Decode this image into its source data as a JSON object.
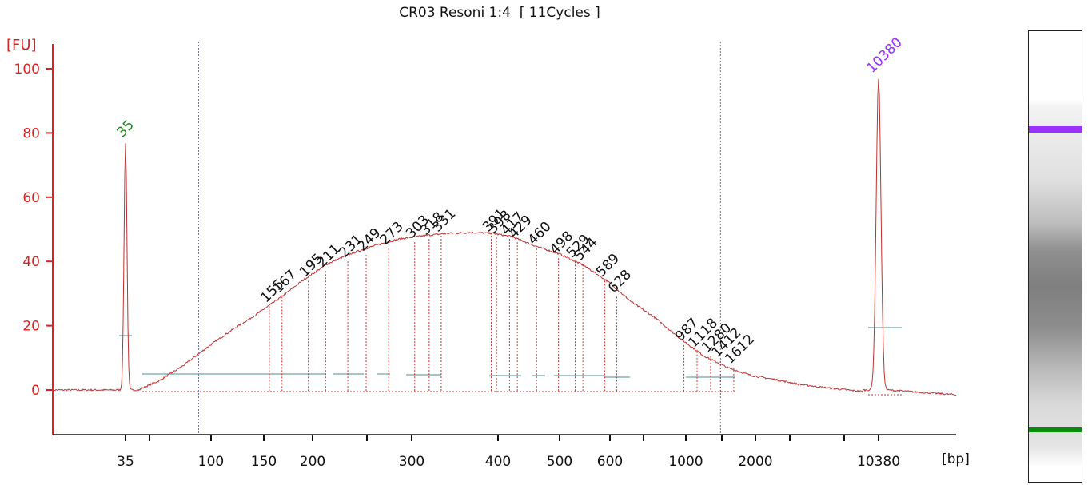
{
  "chart_data": {
    "type": "line",
    "title": "CR03 Resoni 1:4  [ 11Cycles ]",
    "ylabel": "[FU]",
    "xlabel": "[bp]",
    "ylim": [
      -13,
      105
    ],
    "y_ticks": [
      0,
      20,
      40,
      60,
      80,
      100
    ],
    "x_tick_labels": [
      "35",
      "100",
      "150",
      "200",
      "300",
      "400",
      "500",
      "600",
      "1000",
      "2000",
      "10380"
    ],
    "series_color": "#c03030",
    "marker_colors": {
      "lower": "#1a8a1a",
      "upper": "#9b30ff"
    },
    "markers": [
      {
        "label": "35",
        "bp": 35,
        "fu": 77,
        "kind": "lower"
      },
      {
        "label": "10380",
        "bp": 10380,
        "fu": 97,
        "kind": "upper"
      }
    ],
    "peaks": [
      {
        "label": "155",
        "bp": 155,
        "fu": 26
      },
      {
        "label": "167",
        "bp": 167,
        "fu": 29
      },
      {
        "label": "195",
        "bp": 195,
        "fu": 34
      },
      {
        "label": "211",
        "bp": 211,
        "fu": 37
      },
      {
        "label": "231",
        "bp": 231,
        "fu": 40
      },
      {
        "label": "249",
        "bp": 249,
        "fu": 42
      },
      {
        "label": "273",
        "bp": 273,
        "fu": 44
      },
      {
        "label": "303",
        "bp": 303,
        "fu": 46
      },
      {
        "label": "318",
        "bp": 318,
        "fu": 47
      },
      {
        "label": "331",
        "bp": 331,
        "fu": 48
      },
      {
        "label": "391",
        "bp": 391,
        "fu": 48
      },
      {
        "label": "398",
        "bp": 398,
        "fu": 47.5
      },
      {
        "label": "417",
        "bp": 417,
        "fu": 47
      },
      {
        "label": "429",
        "bp": 429,
        "fu": 46
      },
      {
        "label": "460",
        "bp": 460,
        "fu": 44
      },
      {
        "label": "498",
        "bp": 498,
        "fu": 41
      },
      {
        "label": "529",
        "bp": 529,
        "fu": 40
      },
      {
        "label": "544",
        "bp": 544,
        "fu": 39
      },
      {
        "label": "589",
        "bp": 589,
        "fu": 34
      },
      {
        "label": "628",
        "bp": 628,
        "fu": 29
      },
      {
        "label": "987",
        "bp": 987,
        "fu": 14
      },
      {
        "label": "1118",
        "bp": 1118,
        "fu": 12
      },
      {
        "label": "1280",
        "bp": 1280,
        "fu": 10.5
      },
      {
        "label": "1412",
        "bp": 1412,
        "fu": 9
      },
      {
        "label": "1612",
        "bp": 1612,
        "fu": 7
      }
    ],
    "smear_regions": [
      {
        "bp_from": 87,
        "bp_to": 1412
      }
    ],
    "grid": false,
    "legend": "none"
  }
}
